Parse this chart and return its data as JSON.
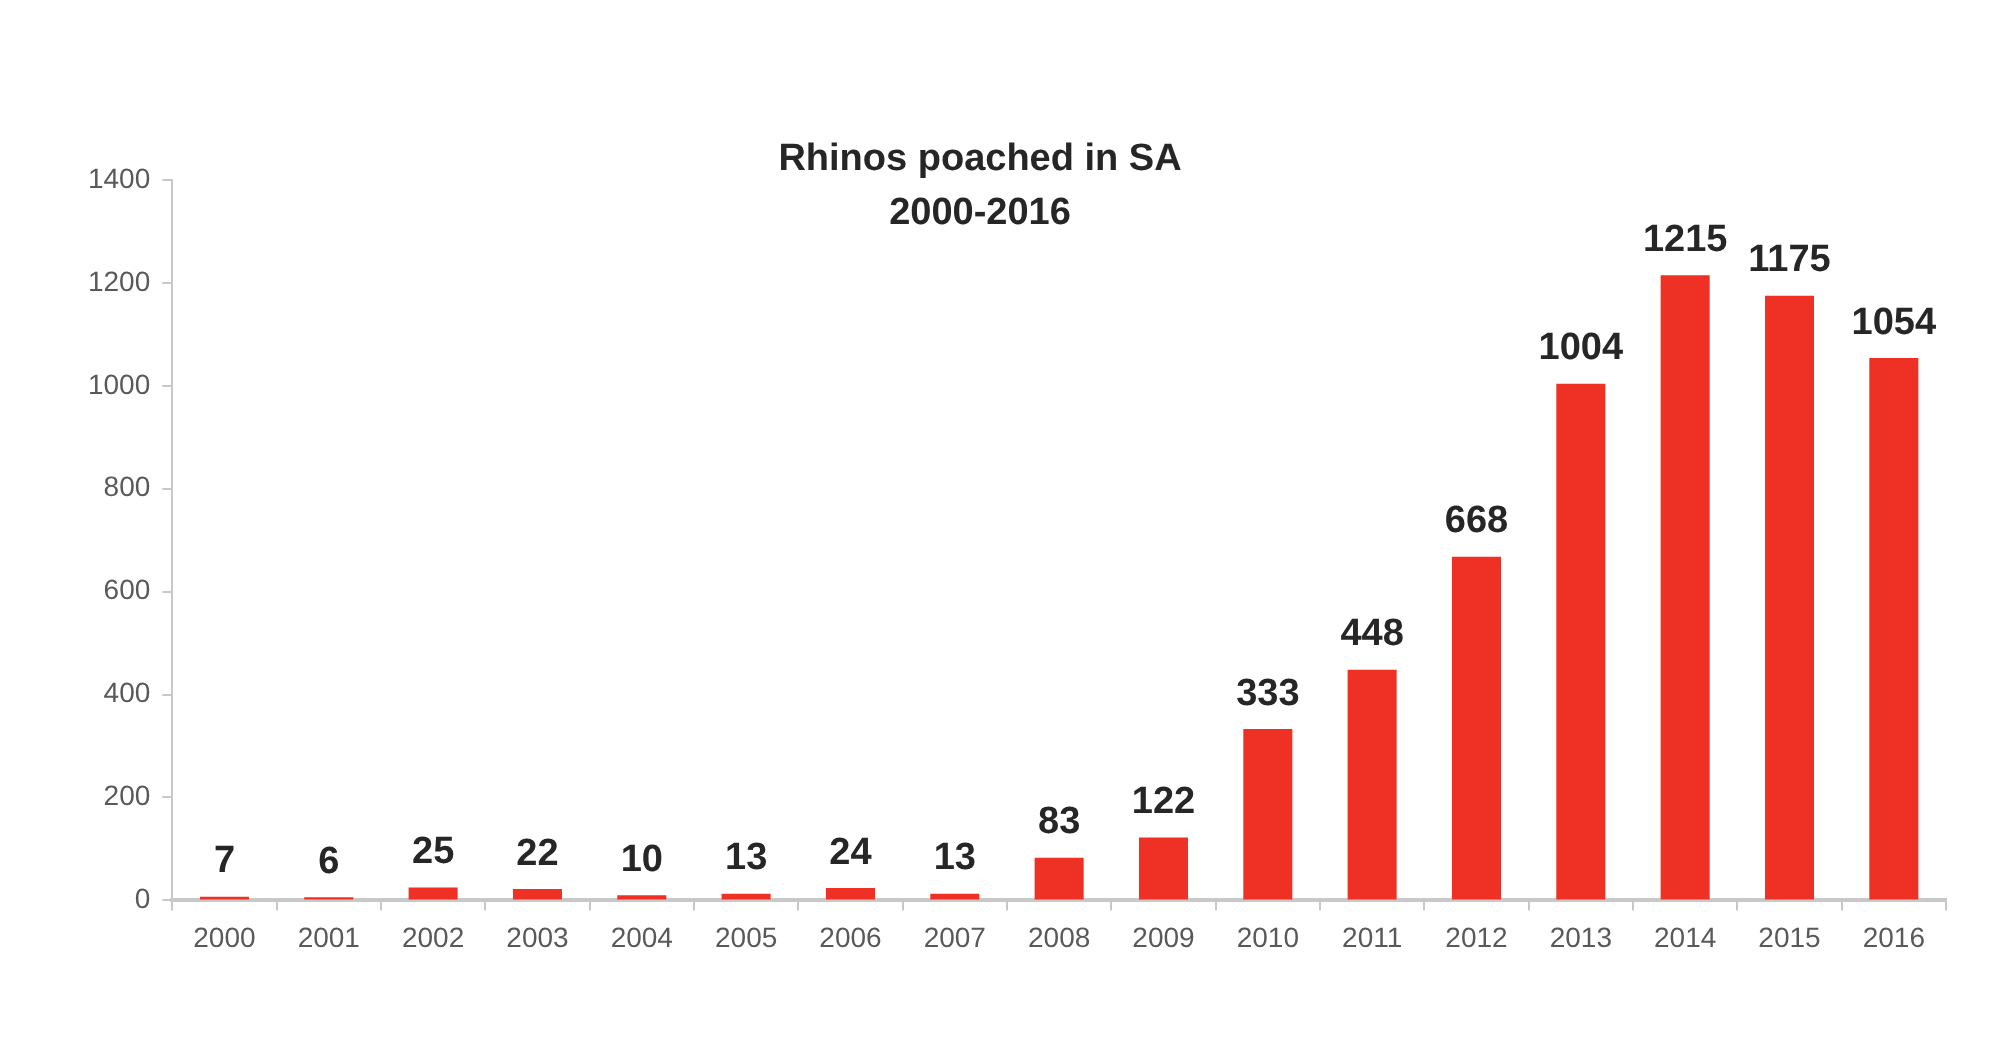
{
  "chart_data": {
    "type": "bar",
    "title": "Rhinos poached in SA\n2000-2016",
    "categories": [
      "2000",
      "2001",
      "2002",
      "2003",
      "2004",
      "2005",
      "2006",
      "2007",
      "2008",
      "2009",
      "2010",
      "2011",
      "2012",
      "2013",
      "2014",
      "2015",
      "2016"
    ],
    "values": [
      7,
      6,
      25,
      22,
      10,
      13,
      24,
      13,
      83,
      122,
      333,
      448,
      668,
      1004,
      1215,
      1175,
      1054
    ],
    "color": "#ee3124",
    "ylim": [
      0,
      1400
    ],
    "yticks": [
      0,
      200,
      400,
      600,
      800,
      1000,
      1200,
      1400
    ],
    "grid": false,
    "data_labels": true
  }
}
